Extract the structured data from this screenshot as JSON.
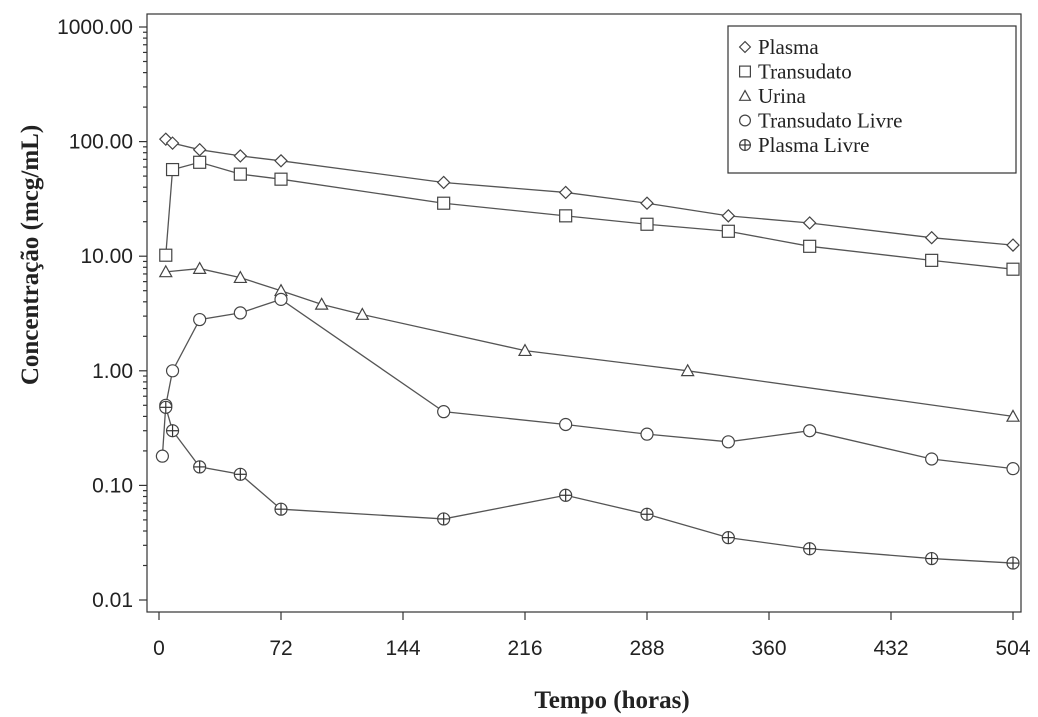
{
  "chart_data": {
    "type": "scatter",
    "xlabel": "Tempo (horas)",
    "ylabel": "Concentração (mcg/mL)",
    "xlim": [
      0,
      504
    ],
    "ylim": [
      0.01,
      1000
    ],
    "yscale": "log",
    "grid": false,
    "legend_position": "top-right",
    "x_ticks": [
      0,
      72,
      144,
      216,
      288,
      360,
      432,
      504
    ],
    "x_tick_labels": [
      "0",
      "72",
      "144",
      "216",
      "288",
      "360",
      "432",
      "504"
    ],
    "y_ticks": [
      0.01,
      0.1,
      1,
      10,
      100,
      1000
    ],
    "y_tick_labels": [
      "0.01",
      "0.10",
      "1.00",
      "10.00",
      "100.00",
      "1000.00"
    ],
    "series": [
      {
        "name": "Plasma",
        "marker": "diamond",
        "x": [
          4,
          8,
          24,
          48,
          72,
          168,
          240,
          288,
          336,
          384,
          456,
          504
        ],
        "y": [
          105,
          97,
          85,
          75,
          68,
          44,
          36,
          29,
          22.5,
          19.5,
          14.5,
          12.5
        ]
      },
      {
        "name": "Transudato",
        "marker": "square",
        "x": [
          4,
          8,
          24,
          48,
          72,
          168,
          240,
          288,
          336,
          384,
          456,
          504
        ],
        "y": [
          10.2,
          57,
          66,
          52,
          47,
          29,
          22.5,
          19,
          16.5,
          12.2,
          9.2,
          7.7
        ]
      },
      {
        "name": "Urina",
        "marker": "triangle",
        "x": [
          4,
          24,
          48,
          72,
          96,
          120,
          216,
          312,
          504
        ],
        "y": [
          7.3,
          7.8,
          6.5,
          5,
          3.8,
          3.1,
          1.5,
          1.0,
          0.4
        ]
      },
      {
        "name": "Transudato Livre",
        "marker": "circle",
        "x": [
          2,
          4,
          8,
          24,
          48,
          72,
          168,
          240,
          288,
          336,
          384,
          456,
          504
        ],
        "y": [
          0.18,
          0.5,
          1.0,
          2.8,
          3.2,
          4.2,
          0.44,
          0.34,
          0.28,
          0.24,
          0.3,
          0.17,
          0.14
        ]
      },
      {
        "name": "Plasma Livre",
        "marker": "circle-plus",
        "x": [
          4,
          8,
          24,
          48,
          72,
          168,
          240,
          288,
          336,
          384,
          456,
          504
        ],
        "y": [
          0.48,
          0.3,
          0.145,
          0.125,
          0.062,
          0.051,
          0.082,
          0.056,
          0.035,
          0.028,
          0.023,
          0.021
        ]
      }
    ]
  },
  "colors": {
    "ink": "#444444",
    "line": "#555555",
    "background": "#ffffff"
  }
}
